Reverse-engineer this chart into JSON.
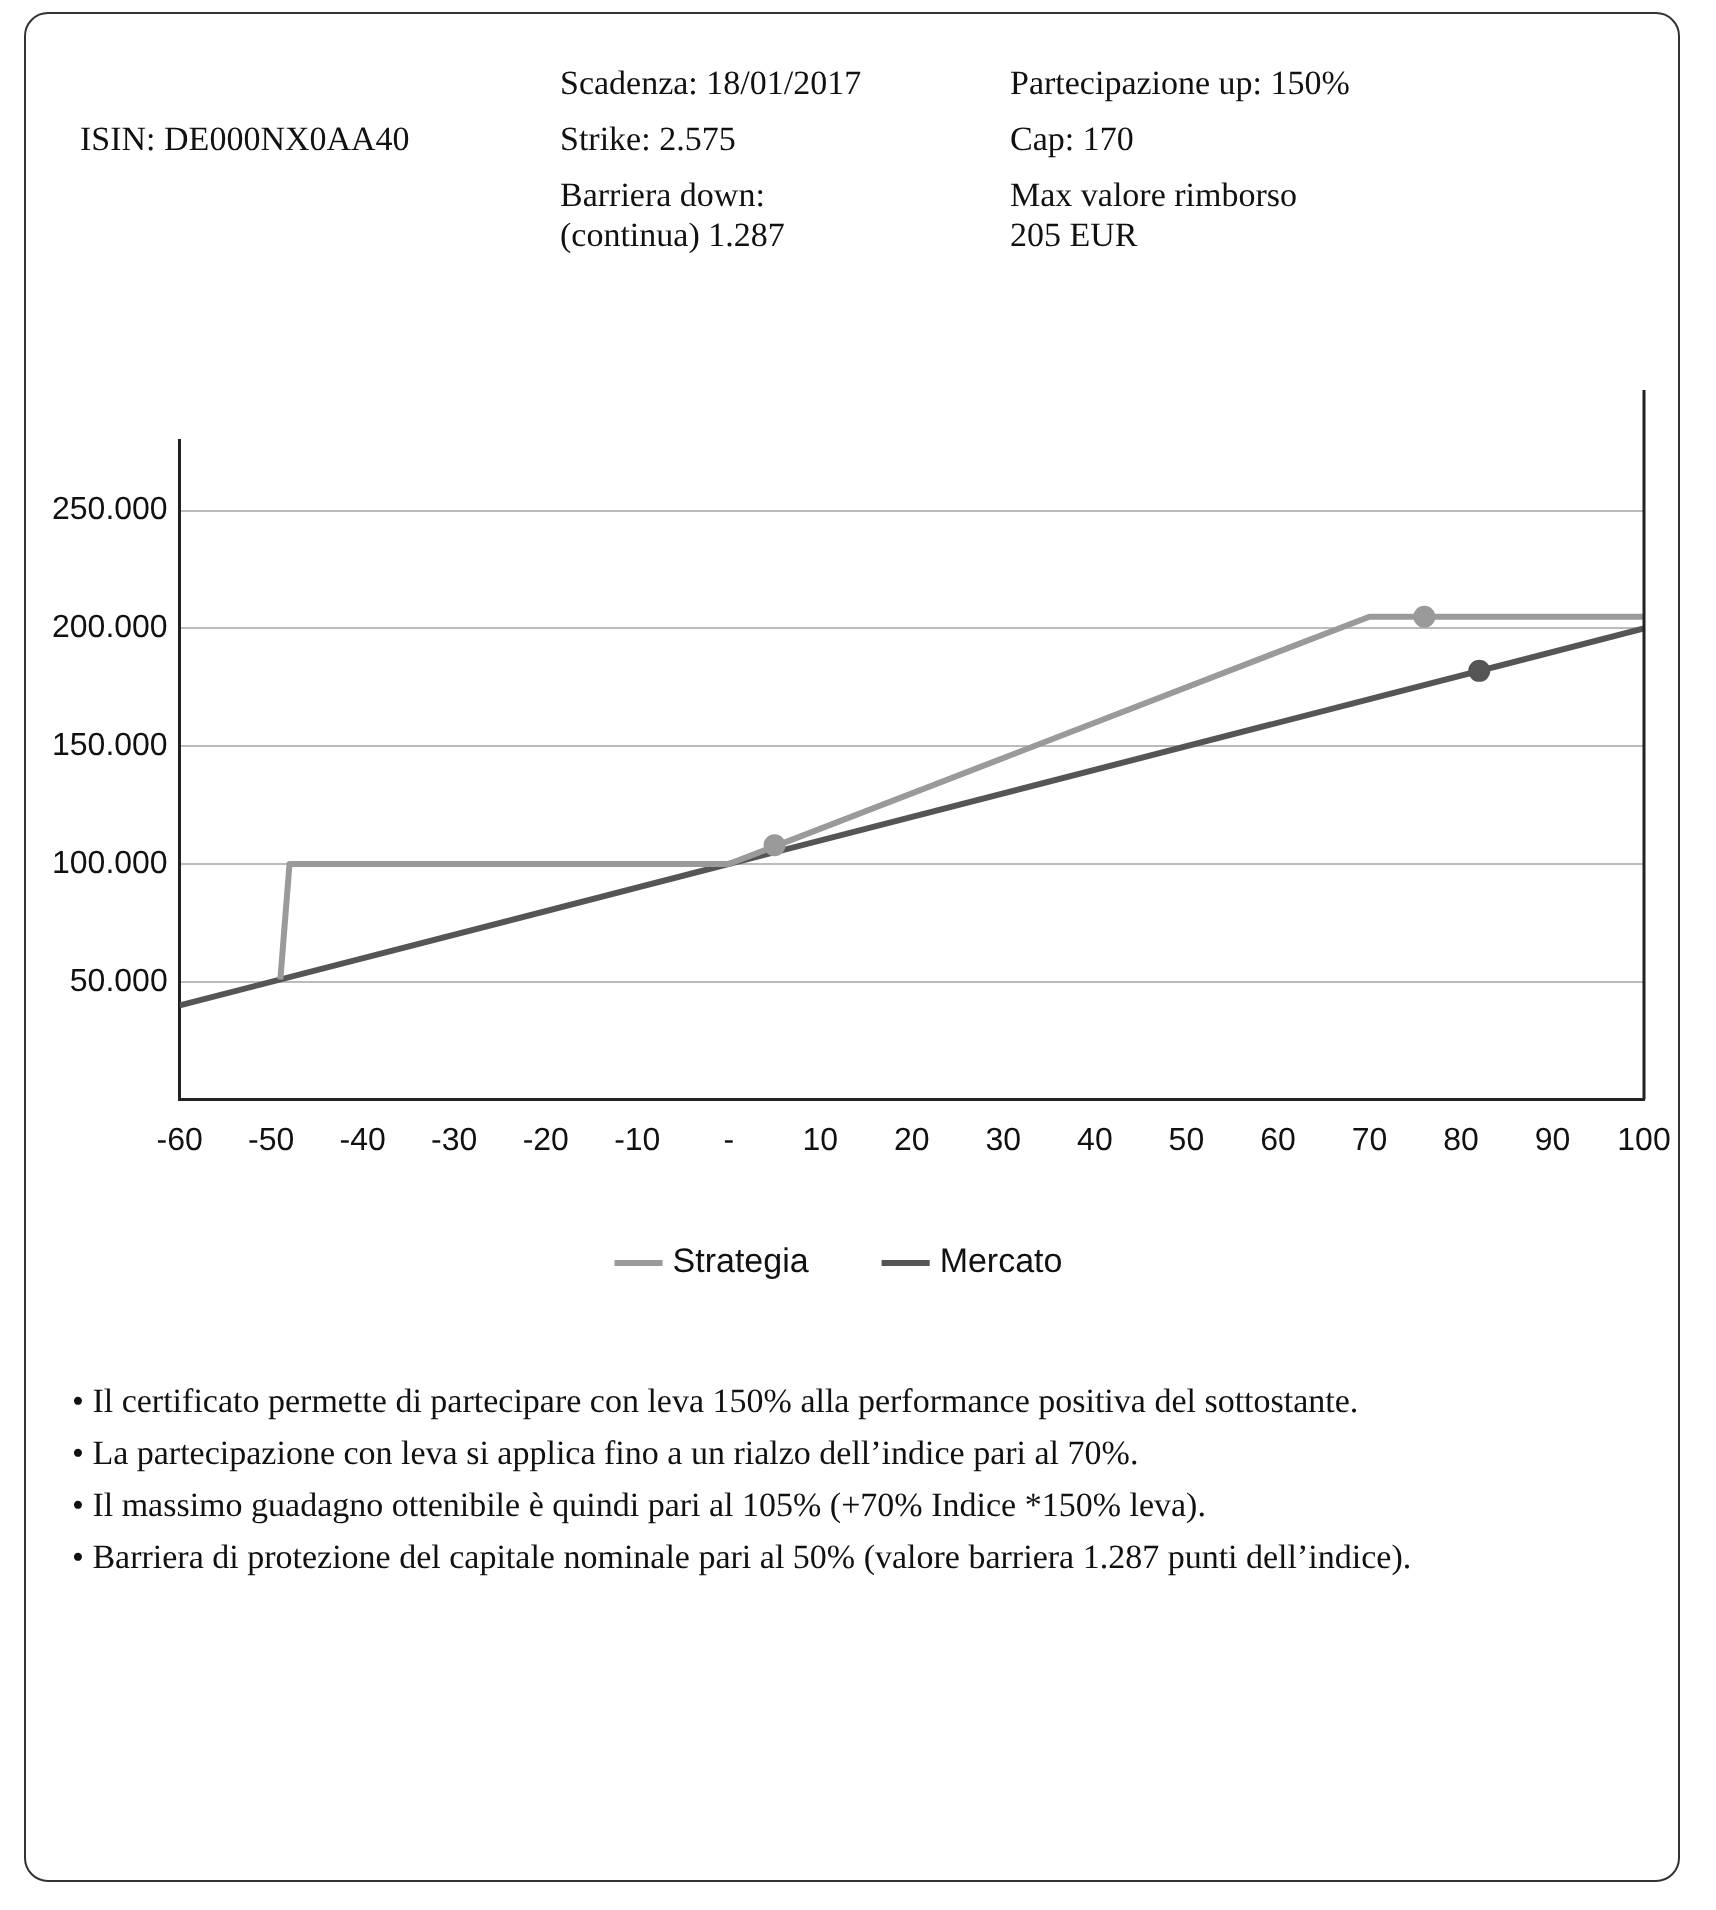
{
  "chart_data": {
    "type": "line",
    "annotations": [
      "Scadenza: 18/01/2017",
      "Partecipazione up: 150%",
      "ISIN: DE000NX0AA40",
      "Strike: 2.575",
      "Cap: 170",
      "Barriera down: (continua) 1.287",
      "Max valore rimborso 205 EUR",
      "• Il certificato permette di partecipare con leva 150% alla performance positiva del sottostante.",
      "• La partecipazione con leva si applica fino a un rialzo dell’indice pari al 70%.",
      "• Il massimo guadagno ottenibile è quindi pari al 105% (+70% Indice *150% leva).",
      "• Barriera di protezione del capitale nominale pari al 50% (valore barriera 1.287 punti dell’indice)."
    ],
    "series": [
      {
        "name": "Strategia",
        "color": "#9a9a9a",
        "x": [
          -49,
          -48,
          0,
          70,
          100
        ],
        "values": [
          51000,
          100000,
          100000,
          205000,
          205000
        ]
      },
      {
        "name": "Mercato",
        "color": "#555555",
        "x": [
          -60,
          100
        ],
        "values": [
          40000,
          200000
        ]
      },
      {
        "type": "scatter",
        "marker": "circle",
        "color": "#9a9a9a",
        "x": [
          5,
          76
        ],
        "values": [
          108000,
          205000
        ]
      },
      {
        "type": "scatter",
        "marker": "circle",
        "color": "#555555",
        "x": [
          82
        ],
        "values": [
          182000
        ]
      }
    ],
    "xlim": [
      -60,
      100
    ],
    "xticks": [
      -60,
      -50,
      -40,
      -30,
      -20,
      -10,
      {
        "value": 0,
        "label": "-"
      },
      10,
      20,
      30,
      40,
      50,
      60,
      70,
      80,
      90,
      100
    ],
    "ylim": [
      0,
      280000
    ],
    "yticks": [
      {
        "value": 50000,
        "label": "50.000"
      },
      {
        "value": 100000,
        "label": "100.000"
      },
      {
        "value": 150000,
        "label": "150.000"
      },
      {
        "value": 200000,
        "label": "200.000"
      },
      {
        "value": 250000,
        "label": "250.000"
      }
    ],
    "grid": "y",
    "legend": "bottom"
  }
}
